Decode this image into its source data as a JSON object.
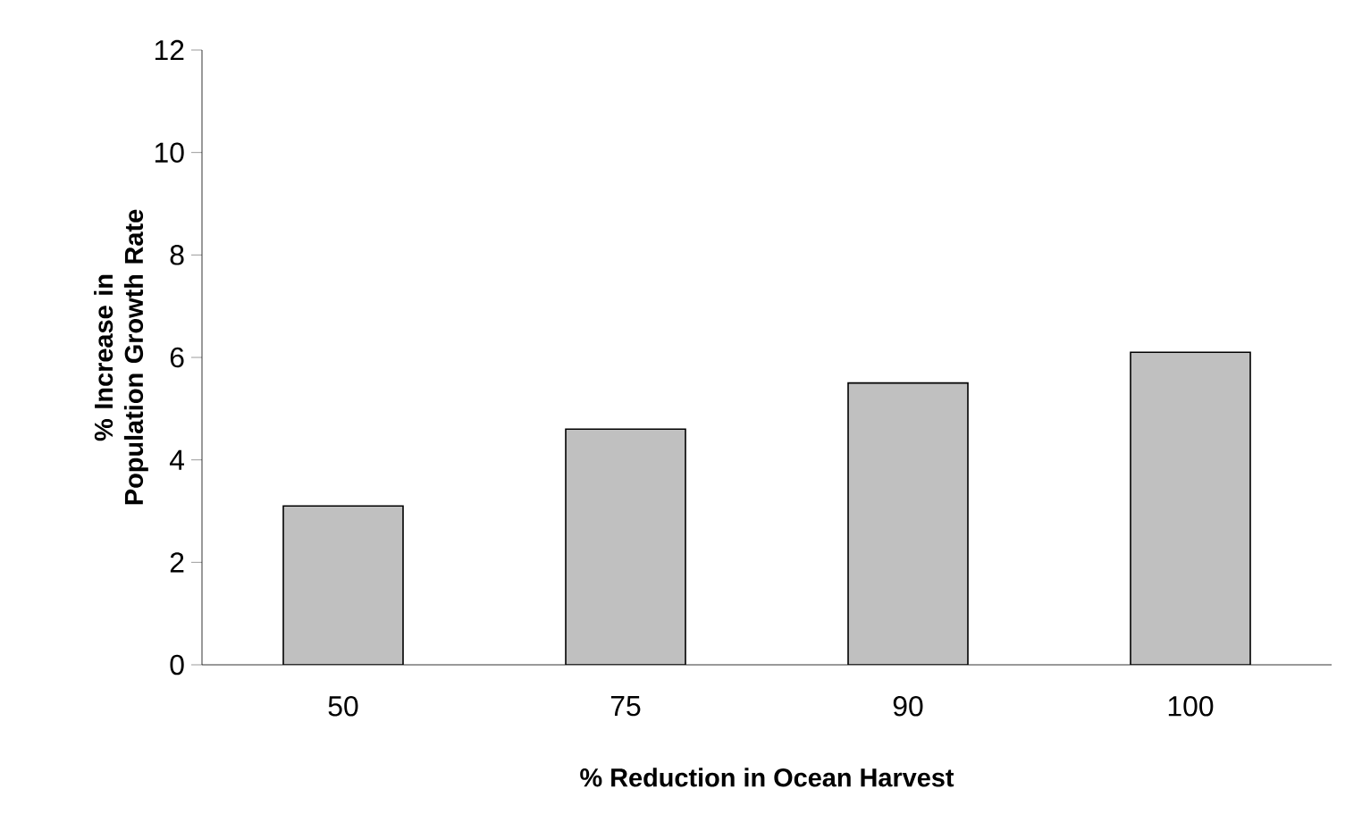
{
  "chart_data": {
    "type": "bar",
    "xlabel": "% Reduction in Ocean Harvest",
    "ylabel": "% Increase in Population Growth Rate",
    "categories": [
      "50",
      "75",
      "90",
      "100"
    ],
    "values": [
      3.1,
      4.6,
      5.5,
      6.1
    ],
    "color": "#c0c0c0",
    "ylim": [
      0,
      12
    ],
    "yticks": [
      0,
      2,
      4,
      6,
      8,
      10,
      12
    ],
    "grid": false
  }
}
